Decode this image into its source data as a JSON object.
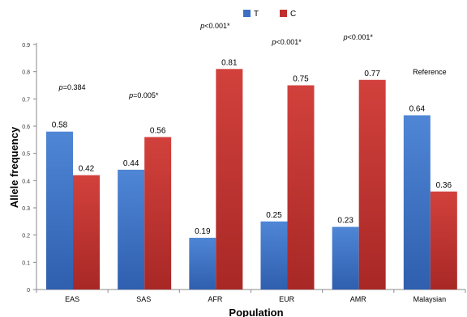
{
  "chart_data": {
    "type": "bar",
    "xlabel": "Population",
    "ylabel": "Allele frequency",
    "ylim": [
      0,
      0.9
    ],
    "yticks": [
      "0",
      "0.1",
      "0.2",
      "0.3",
      "0.4",
      "0.5",
      "0.6",
      "0.7",
      "0.8",
      "0.9"
    ],
    "categories": [
      "EAS",
      "SAS",
      "AFR",
      "EUR",
      "AMR",
      "Malaysian"
    ],
    "series": [
      {
        "name": "T",
        "color": "#3a6fc4",
        "values": [
          0.58,
          0.44,
          0.19,
          0.25,
          0.23,
          0.64
        ],
        "labels": [
          "0.58",
          "0.44",
          "0.19",
          "0.25",
          "0.23",
          "0.64"
        ]
      },
      {
        "name": "C",
        "color": "#c0302e",
        "values": [
          0.42,
          0.56,
          0.81,
          0.75,
          0.77,
          0.36
        ],
        "labels": [
          "0.42",
          "0.56",
          "0.81",
          "0.75",
          "0.77",
          "0.36"
        ]
      }
    ],
    "annotations": [
      {
        "text": "p=0.384",
        "category": "EAS"
      },
      {
        "text": "p=0.005*",
        "category": "SAS"
      },
      {
        "text": "p<0.001*",
        "category": "AFR"
      },
      {
        "text": "p<0.001*",
        "category": "EUR"
      },
      {
        "text": "p<0.001*",
        "category": "AMR"
      },
      {
        "text": "Reference",
        "category": "Malaysian"
      }
    ],
    "legend_position": "top-center",
    "grid": false
  }
}
